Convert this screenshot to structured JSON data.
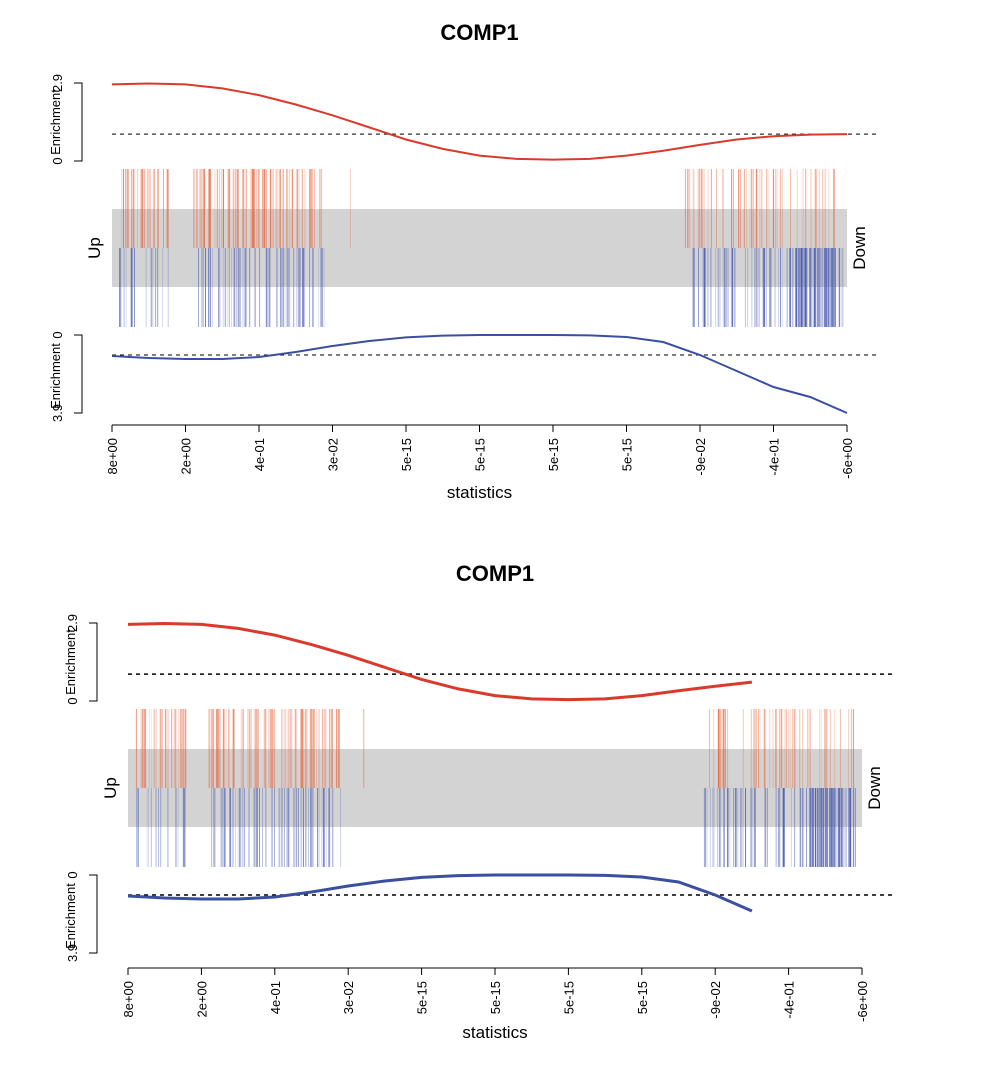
{
  "chart_data": [
    {
      "type": "line",
      "title": "COMP1",
      "xlabel": "statistics",
      "side_labels": {
        "left": "Up",
        "right": "Down"
      },
      "x_tick_labels": [
        "8e+00",
        "2e+00",
        "4e-01",
        "3e-02",
        "5e-15",
        "5e-15",
        "5e-15",
        "5e-15",
        "-9e-02",
        "-4e-01",
        "-6e+00"
      ],
      "up_panel": {
        "ylabel": "Enrichment",
        "ylim": [
          0,
          2.9
        ],
        "tick_labels": [
          "0",
          "2.9"
        ],
        "baseline": 1.0,
        "color": "#d93a2b",
        "x": [
          0,
          0.5,
          1,
          1.5,
          2,
          2.5,
          3,
          3.5,
          4,
          4.5,
          5,
          5.5,
          6,
          6.5,
          7,
          7.5,
          8,
          8.5,
          9,
          9.5,
          10
        ],
        "y": [
          2.85,
          2.88,
          2.85,
          2.7,
          2.45,
          2.1,
          1.7,
          1.25,
          0.8,
          0.45,
          0.2,
          0.08,
          0.05,
          0.08,
          0.2,
          0.38,
          0.6,
          0.8,
          0.92,
          0.98,
          1.0
        ]
      },
      "down_panel": {
        "ylabel": "Enrichment",
        "ylim": [
          0,
          3.9
        ],
        "tick_labels": [
          "0",
          "3.9"
        ],
        "baseline": 1.0,
        "color": "#3a4fa0",
        "inverted": true,
        "x": [
          0,
          0.5,
          1,
          1.5,
          2,
          2.5,
          3,
          3.5,
          4,
          4.5,
          5,
          5.5,
          6,
          6.5,
          7,
          7.5,
          8,
          8.5,
          9,
          9.5,
          10
        ],
        "y": [
          1.05,
          1.15,
          1.2,
          1.2,
          1.1,
          0.85,
          0.55,
          0.3,
          0.12,
          0.03,
          0.0,
          0.0,
          0.0,
          0.02,
          0.1,
          0.35,
          1.0,
          1.8,
          2.6,
          3.1,
          3.9
        ]
      },
      "up_bar_color": "#e8623a",
      "down_bar_color": "#4a5bb0"
    },
    {
      "type": "line",
      "title": "COMP1",
      "xlabel": "statistics",
      "side_labels": {
        "left": "Up",
        "right": "Down"
      },
      "x_tick_labels": [
        "8e+00",
        "2e+00",
        "4e-01",
        "3e-02",
        "5e-15",
        "5e-15",
        "5e-15",
        "5e-15",
        "-9e-02",
        "-4e-01",
        "-6e+00"
      ],
      "up_panel": {
        "ylabel": "Enrichment",
        "ylim": [
          0,
          2.9
        ],
        "tick_labels": [
          "0",
          "2.9"
        ],
        "baseline": 1.0,
        "color": "#d93a2b",
        "x": [
          0,
          0.5,
          1,
          1.5,
          2,
          2.5,
          3,
          3.5,
          4,
          4.5,
          5,
          5.5,
          6,
          6.5,
          7,
          7.5,
          8,
          8.5
        ],
        "y": [
          2.85,
          2.88,
          2.85,
          2.7,
          2.45,
          2.1,
          1.7,
          1.25,
          0.8,
          0.45,
          0.2,
          0.08,
          0.05,
          0.08,
          0.2,
          0.38,
          0.55,
          0.7
        ]
      },
      "down_panel": {
        "ylabel": "Enrichment",
        "ylim": [
          0,
          3.9
        ],
        "tick_labels": [
          "0",
          "3.9"
        ],
        "baseline": 1.0,
        "color": "#3a4fa0",
        "inverted": true,
        "x": [
          0,
          0.5,
          1,
          1.5,
          2,
          2.5,
          3,
          3.5,
          4,
          4.5,
          5,
          5.5,
          6,
          6.5,
          7,
          7.5,
          8,
          8.5
        ],
        "y": [
          1.05,
          1.15,
          1.2,
          1.2,
          1.1,
          0.85,
          0.55,
          0.3,
          0.12,
          0.03,
          0.0,
          0.0,
          0.0,
          0.02,
          0.1,
          0.35,
          1.0,
          1.8
        ]
      },
      "up_bar_color": "#e8623a",
      "down_bar_color": "#4a5bb0"
    }
  ]
}
